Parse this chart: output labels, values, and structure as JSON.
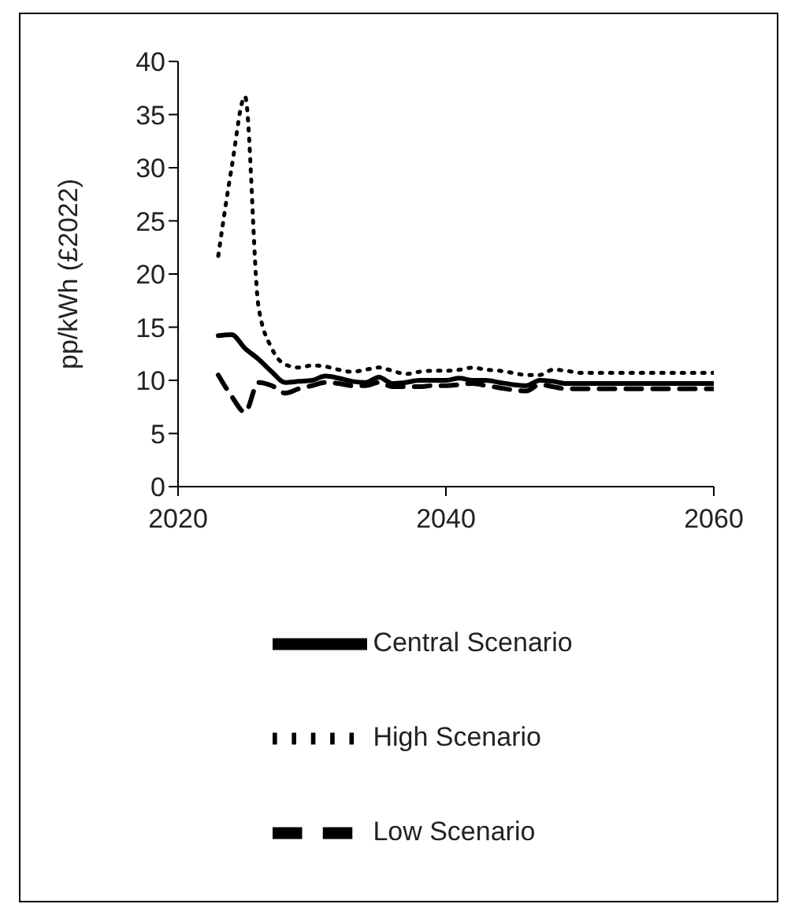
{
  "chart_data": {
    "type": "line",
    "ylabel": "pp/kWh (£2022)",
    "x": [
      2023,
      2024,
      2025,
      2026,
      2027,
      2028,
      2029,
      2030,
      2031,
      2032,
      2033,
      2034,
      2035,
      2036,
      2037,
      2038,
      2039,
      2040,
      2041,
      2042,
      2043,
      2044,
      2045,
      2046,
      2047,
      2048,
      2049,
      2050,
      2051,
      2052,
      2053,
      2054,
      2055,
      2056,
      2057,
      2058,
      2059,
      2060
    ],
    "xlim": [
      2020,
      2060
    ],
    "xticks": [
      2020,
      2040,
      2060
    ],
    "ylim": [
      0,
      40
    ],
    "yticks": [
      0,
      5,
      10,
      15,
      20,
      25,
      30,
      35,
      40
    ],
    "grid": false,
    "legend": "bottom",
    "marker": "none",
    "series": [
      {
        "name": "High Scenario",
        "color": "#000000",
        "line_style": "dotted",
        "values": [
          21.7,
          30,
          36.7,
          17,
          13,
          11.5,
          11.2,
          11.4,
          11.3,
          11.0,
          10.8,
          11.0,
          11.2,
          10.9,
          10.6,
          10.8,
          10.9,
          10.9,
          11.0,
          11.2,
          11.0,
          10.9,
          10.7,
          10.5,
          10.5,
          11.0,
          10.9,
          10.7,
          10.7,
          10.7,
          10.7,
          10.7,
          10.7,
          10.7,
          10.7,
          10.7,
          10.7,
          10.7
        ]
      },
      {
        "name": "Central Scenario",
        "color": "#000000",
        "line_style": "solid",
        "values": [
          14.2,
          14.3,
          13.0,
          12.0,
          10.8,
          9.8,
          9.9,
          10.0,
          10.4,
          10.2,
          9.9,
          9.8,
          10.3,
          9.7,
          9.8,
          10.0,
          10.0,
          10.0,
          10.2,
          10.0,
          10.0,
          9.8,
          9.6,
          9.5,
          10.0,
          9.9,
          9.7,
          9.7,
          9.7,
          9.7,
          9.7,
          9.7,
          9.7,
          9.7,
          9.7,
          9.7,
          9.7,
          9.7
        ]
      },
      {
        "name": "Low Scenario",
        "color": "#000000",
        "line_style": "dashed",
        "values": [
          10.5,
          8.5,
          7.0,
          9.8,
          9.5,
          8.8,
          9.2,
          9.5,
          9.8,
          9.7,
          9.5,
          9.5,
          9.8,
          9.4,
          9.4,
          9.4,
          9.5,
          9.5,
          9.6,
          9.7,
          9.5,
          9.3,
          9.1,
          9.0,
          9.6,
          9.4,
          9.2,
          9.2,
          9.2,
          9.2,
          9.2,
          9.2,
          9.2,
          9.2,
          9.2,
          9.2,
          9.2,
          9.2
        ]
      }
    ]
  }
}
